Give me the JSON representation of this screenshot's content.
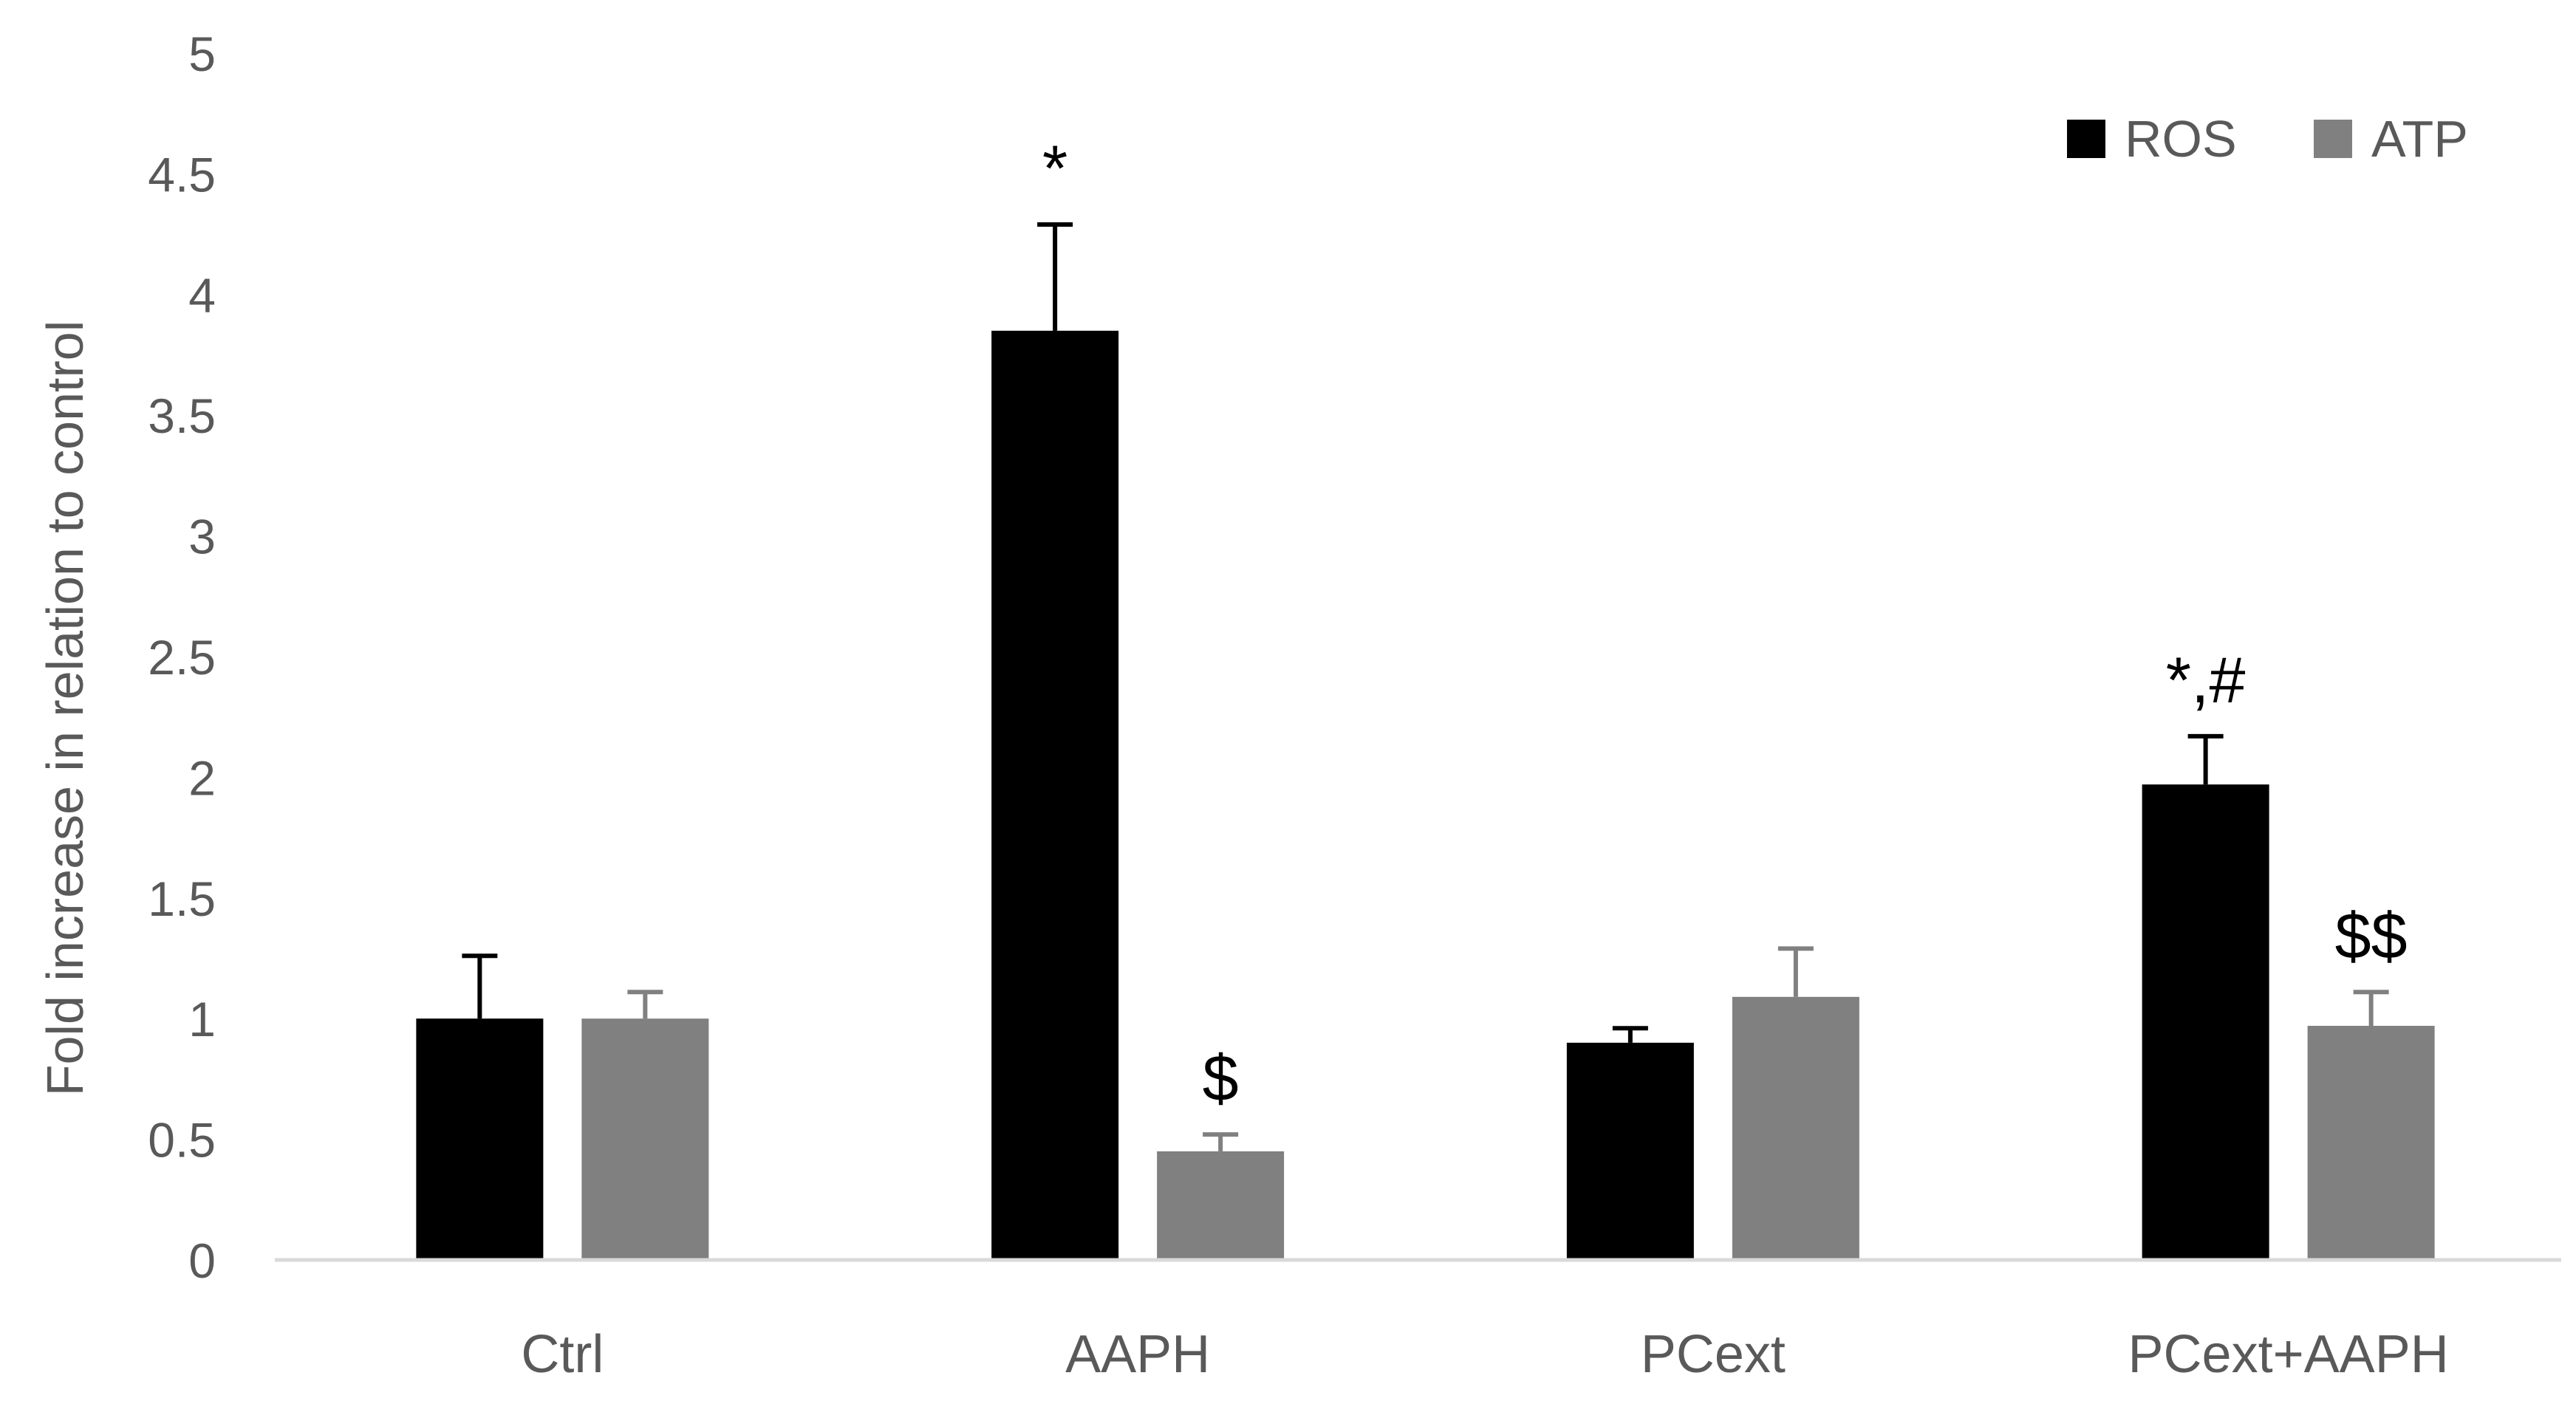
{
  "chart_data": {
    "type": "bar",
    "title": "",
    "xlabel": "",
    "ylabel": "Fold increase in relation to control",
    "ylim": [
      0,
      5
    ],
    "yticks": [
      0,
      0.5,
      1,
      1.5,
      2,
      2.5,
      3,
      3.5,
      4,
      4.5,
      5
    ],
    "categories": [
      "Ctrl",
      "AAPH",
      "PCext",
      "PCext+AAPH"
    ],
    "series": [
      {
        "name": "ROS",
        "color": "#000000",
        "values": [
          1.0,
          3.85,
          0.9,
          1.97
        ],
        "errors": [
          0.26,
          0.44,
          0.06,
          0.2
        ]
      },
      {
        "name": "ATP",
        "color": "#808080",
        "values": [
          1.0,
          0.45,
          1.09,
          0.97
        ],
        "errors": [
          0.11,
          0.07,
          0.2,
          0.14
        ]
      }
    ],
    "annotations": [
      {
        "series": 0,
        "category": 1,
        "text": "*"
      },
      {
        "series": 1,
        "category": 1,
        "text": "$"
      },
      {
        "series": 0,
        "category": 3,
        "text": "*,#"
      },
      {
        "series": 1,
        "category": 3,
        "text": "$$"
      }
    ],
    "grid": false,
    "legend_position": "top-right"
  }
}
